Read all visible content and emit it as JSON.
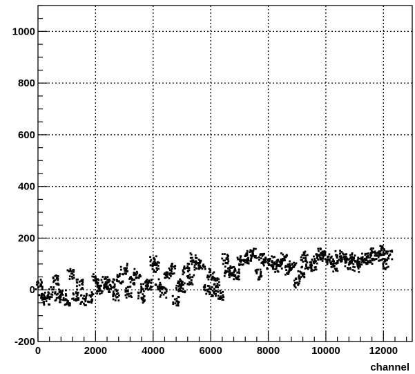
{
  "chart_data": {
    "type": "scatter",
    "title": "",
    "xlabel": "channel",
    "ylabel": "",
    "xlim": [
      0,
      13000
    ],
    "ylim": [
      -200,
      1100
    ],
    "grid": true,
    "legend": "none",
    "marker_color": "#000000",
    "x_ticks": [
      0,
      2000,
      4000,
      6000,
      8000,
      10000,
      12000
    ],
    "x_tick_labels": [
      "0",
      "2000",
      "4000",
      "6000",
      "8000",
      "10000",
      "12000"
    ],
    "y_ticks": [
      -200,
      0,
      200,
      400,
      600,
      800,
      1000
    ],
    "y_tick_labels": [
      "-200",
      "0",
      "200",
      "400",
      "600",
      "800",
      "1000"
    ],
    "series": [
      {
        "values_xy": [
          [
            50,
            20
          ],
          [
            150,
            -30
          ],
          [
            300,
            -40
          ],
          [
            450,
            -10
          ],
          [
            600,
            40
          ],
          [
            700,
            -30
          ],
          [
            850,
            -20
          ],
          [
            1000,
            -40
          ],
          [
            1150,
            60
          ],
          [
            1300,
            -30
          ],
          [
            1450,
            20
          ],
          [
            1600,
            -40
          ],
          [
            1800,
            -30
          ],
          [
            2000,
            40
          ],
          [
            2150,
            0
          ],
          [
            2300,
            30
          ],
          [
            2400,
            10
          ],
          [
            2550,
            20
          ],
          [
            2700,
            -20
          ],
          [
            2850,
            40
          ],
          [
            3000,
            80
          ],
          [
            3150,
            -10
          ],
          [
            3300,
            30
          ],
          [
            3450,
            60
          ],
          [
            3600,
            -30
          ],
          [
            3700,
            10
          ],
          [
            3850,
            20
          ],
          [
            4000,
            110
          ],
          [
            4100,
            90
          ],
          [
            4200,
            20
          ],
          [
            4350,
            -10
          ],
          [
            4500,
            60
          ],
          [
            4650,
            80
          ],
          [
            4800,
            -40
          ],
          [
            4900,
            20
          ],
          [
            5000,
            10
          ],
          [
            5150,
            80
          ],
          [
            5300,
            40
          ],
          [
            5400,
            120
          ],
          [
            5550,
            90
          ],
          [
            5700,
            100
          ],
          [
            5850,
            0
          ],
          [
            6000,
            60
          ],
          [
            6100,
            -10
          ],
          [
            6200,
            30
          ],
          [
            6350,
            -20
          ],
          [
            6500,
            120
          ],
          [
            6600,
            70
          ],
          [
            6750,
            70
          ],
          [
            6900,
            60
          ],
          [
            7050,
            110
          ],
          [
            7200,
            120
          ],
          [
            7350,
            130
          ],
          [
            7500,
            140
          ],
          [
            7650,
            60
          ],
          [
            7800,
            120
          ],
          [
            7950,
            100
          ],
          [
            8100,
            110
          ],
          [
            8250,
            90
          ],
          [
            8400,
            100
          ],
          [
            8550,
            120
          ],
          [
            8700,
            80
          ],
          [
            8850,
            90
          ],
          [
            9000,
            30
          ],
          [
            9150,
            70
          ],
          [
            9250,
            130
          ],
          [
            9400,
            100
          ],
          [
            9550,
            90
          ],
          [
            9700,
            120
          ],
          [
            9850,
            140
          ],
          [
            10000,
            130
          ],
          [
            10150,
            110
          ],
          [
            10300,
            90
          ],
          [
            10450,
            130
          ],
          [
            10600,
            120
          ],
          [
            10750,
            100
          ],
          [
            10900,
            120
          ],
          [
            11050,
            90
          ],
          [
            11200,
            110
          ],
          [
            11350,
            120
          ],
          [
            11500,
            120
          ],
          [
            11650,
            140
          ],
          [
            11800,
            130
          ],
          [
            11950,
            150
          ],
          [
            12050,
            100
          ],
          [
            12200,
            130
          ]
        ]
      }
    ]
  }
}
